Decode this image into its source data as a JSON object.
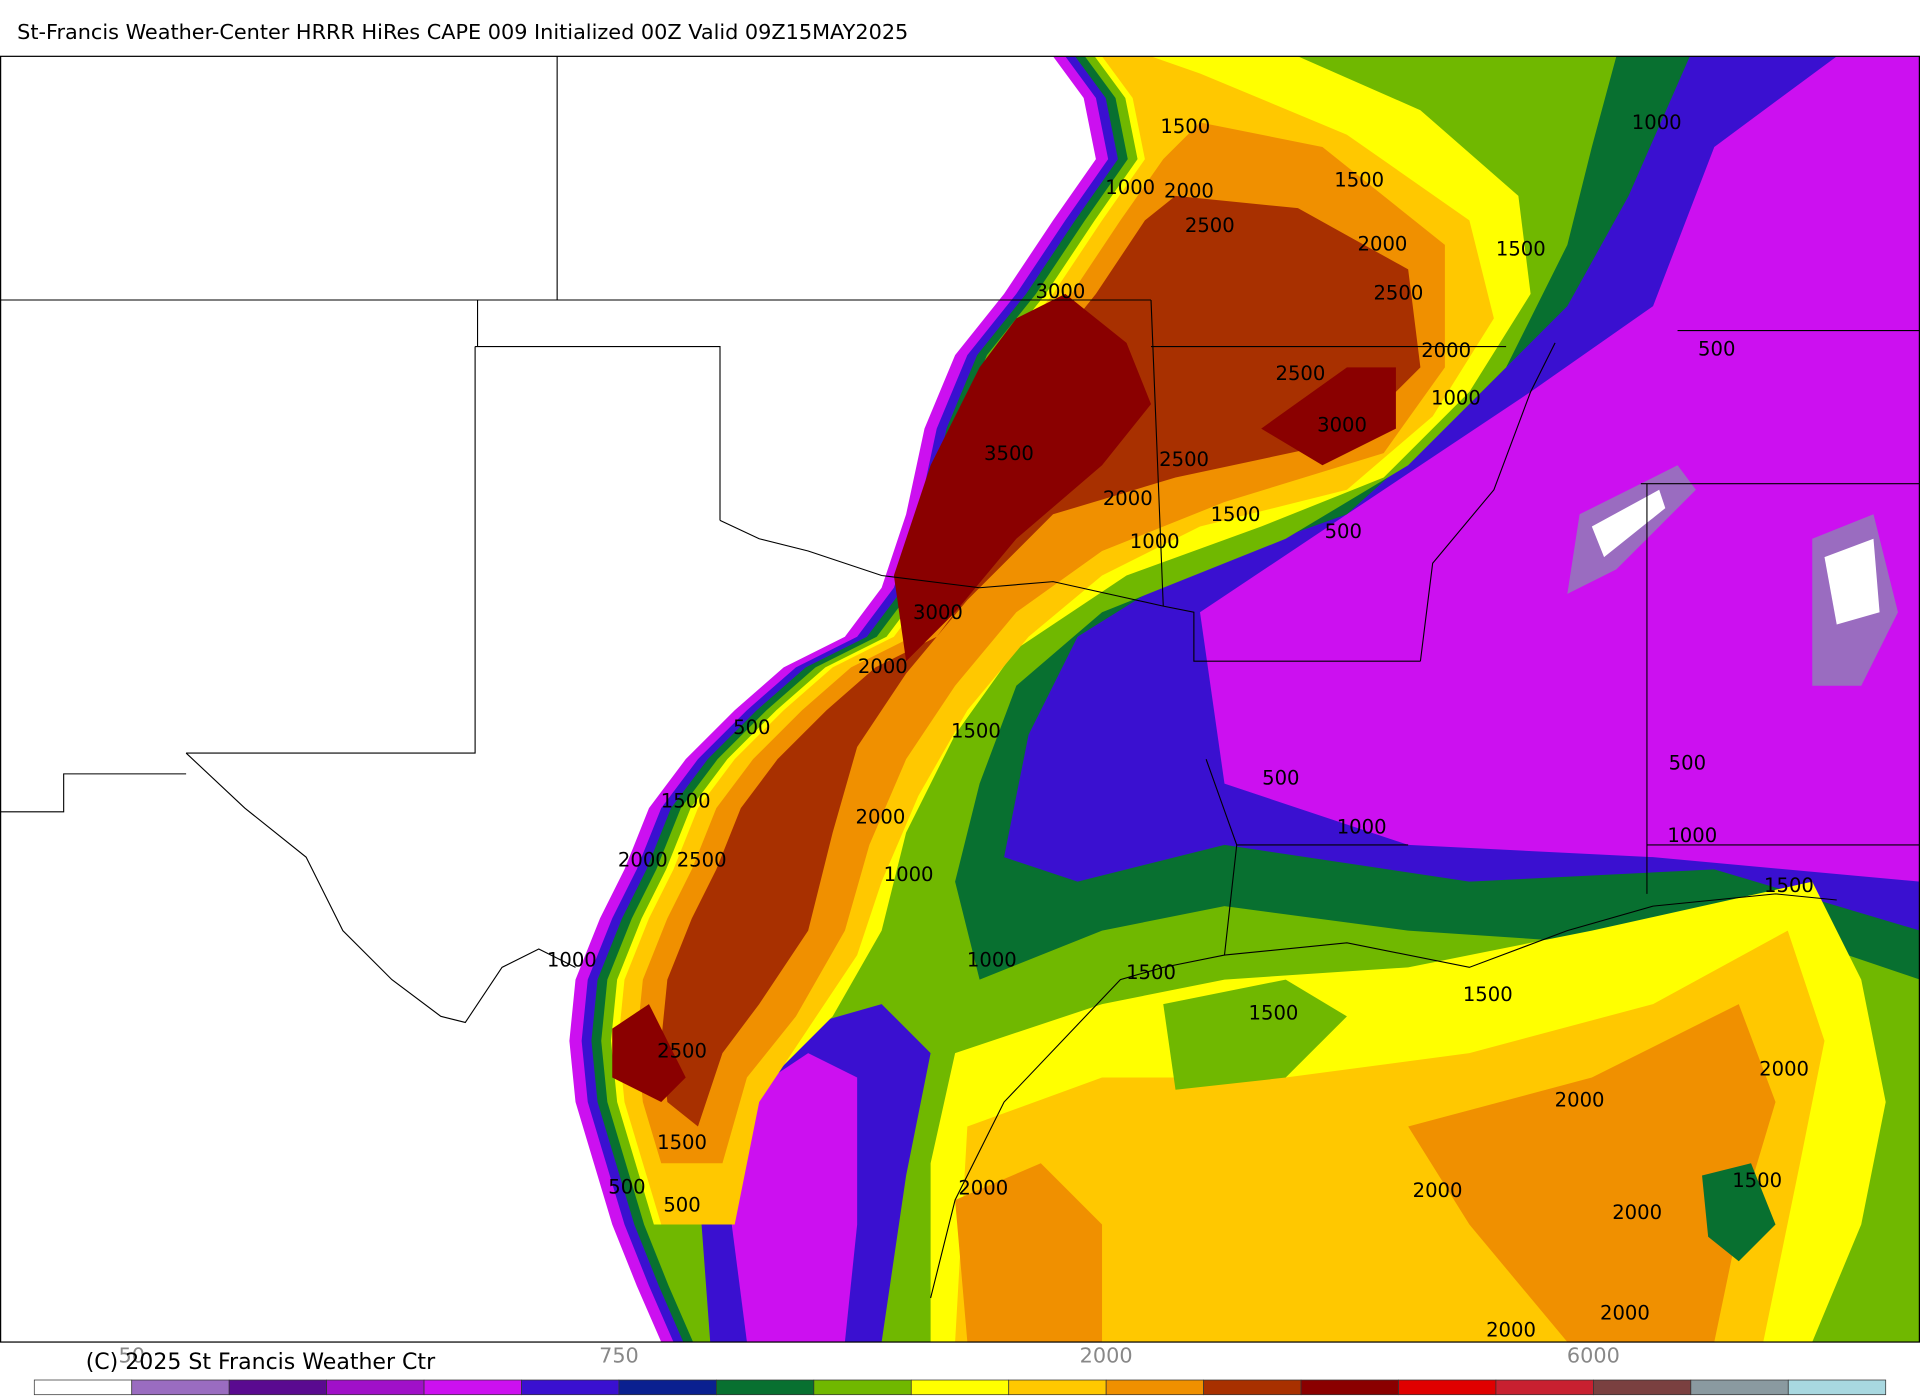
{
  "title": "St-Francis Weather-Center HRRR HiRes CAPE  009 Initialized  00Z Valid 09Z15MAY2025",
  "contour_labels": [
    "1500",
    "1000",
    "1500",
    "1000",
    "2000",
    "2500",
    "2000",
    "1500",
    "3000",
    "2500",
    "2000",
    "500",
    "2500",
    "1000",
    "3000",
    "3500",
    "2500",
    "2000",
    "1500",
    "500",
    "1000",
    "3000",
    "2000",
    "500",
    "1500",
    "500",
    "500",
    "1500",
    "2000",
    "1000",
    "1000",
    "2000",
    "2500",
    "1500",
    "1000",
    "1000",
    "1000",
    "1500",
    "1500",
    "1500",
    "2500",
    "2000",
    "2000",
    "1500",
    "1500",
    "500",
    "2000",
    "2000",
    "500",
    "2000",
    "2000",
    "2000"
  ],
  "colorbar": {
    "colors": [
      "#ffffff",
      "#9a6cc0",
      "#5a0a90",
      "#a010c8",
      "#cc10f0",
      "#3a10d0",
      "#0a2090",
      "#087030",
      "#70b800",
      "#ffff00",
      "#ffc800",
      "#f09000",
      "#a83000",
      "#8a0000",
      "#e00000",
      "#c82030",
      "#7a4040",
      "#8a9aa0",
      "#a8d8e0"
    ],
    "labels": [
      "50",
      "750",
      "2000",
      "6000"
    ]
  },
  "copyright": "(C) 2025 St Francis Weather Ctr"
}
